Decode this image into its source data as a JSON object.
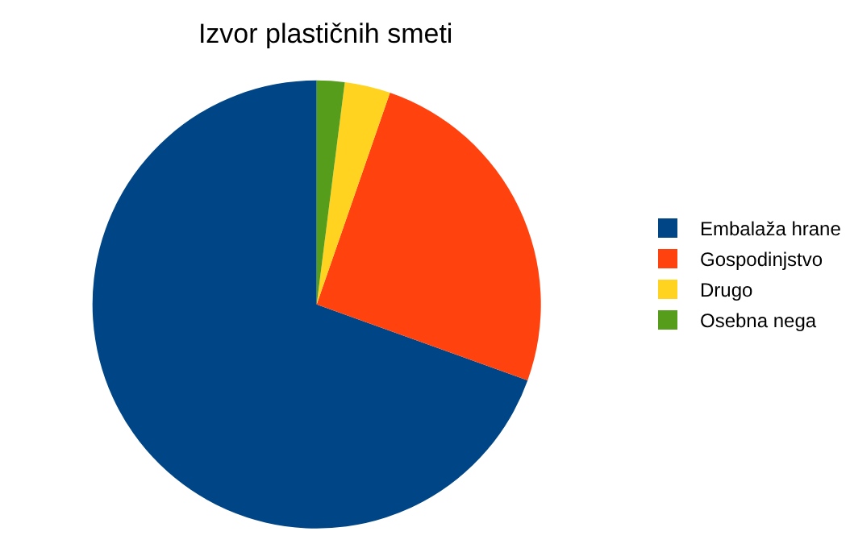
{
  "chart_data": {
    "type": "pie",
    "title": "Izvor plastičnih smeti",
    "categories": [
      "Embalaža hrane",
      "Gospodinjstvo",
      "Drugo",
      "Osebna nega"
    ],
    "values": [
      69.5,
      25.2,
      3.3,
      2.0
    ],
    "colors": [
      "#004586",
      "#ff420e",
      "#ffd320",
      "#579d1c"
    ],
    "legend": "right"
  }
}
